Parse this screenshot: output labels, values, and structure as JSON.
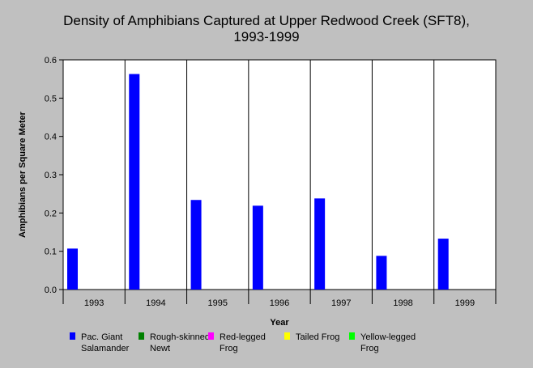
{
  "chart_data": {
    "type": "bar",
    "title_lines": [
      "Density of Amphibians Captured at Upper Redwood Creek (SFT8),",
      "1993-1999"
    ],
    "xlabel": "Year",
    "ylabel": "Amphibians per Square Meter",
    "categories": [
      "1993",
      "1994",
      "1995",
      "1996",
      "1997",
      "1998",
      "1999"
    ],
    "ylim": [
      0,
      0.6
    ],
    "yticks": [
      "0.0",
      "0.1",
      "0.2",
      "0.3",
      "0.4",
      "0.5",
      "0.6"
    ],
    "grid": "vertical separators between years",
    "legend_position": "bottom",
    "series": [
      {
        "name_lines": [
          "Pac. Giant",
          "Salamander"
        ],
        "color": "#0000ff",
        "values": [
          0.107,
          0.563,
          0.234,
          0.219,
          0.238,
          0.088,
          0.133
        ]
      },
      {
        "name_lines": [
          "Rough-skinned",
          "Newt"
        ],
        "color": "#008000",
        "values": [
          0,
          0,
          0,
          0,
          0,
          0,
          0
        ]
      },
      {
        "name_lines": [
          "Red-legged",
          "Frog"
        ],
        "color": "#ff00ff",
        "values": [
          0,
          0,
          0,
          0,
          0,
          0,
          0
        ]
      },
      {
        "name_lines": [
          "Tailed Frog"
        ],
        "color": "#ffff00",
        "values": [
          0,
          0,
          0,
          0,
          0,
          0,
          0
        ]
      },
      {
        "name_lines": [
          "Yellow-legged",
          "Frog"
        ],
        "color": "#00ff00",
        "values": [
          0,
          0,
          0,
          0,
          0,
          0,
          0
        ]
      }
    ]
  }
}
